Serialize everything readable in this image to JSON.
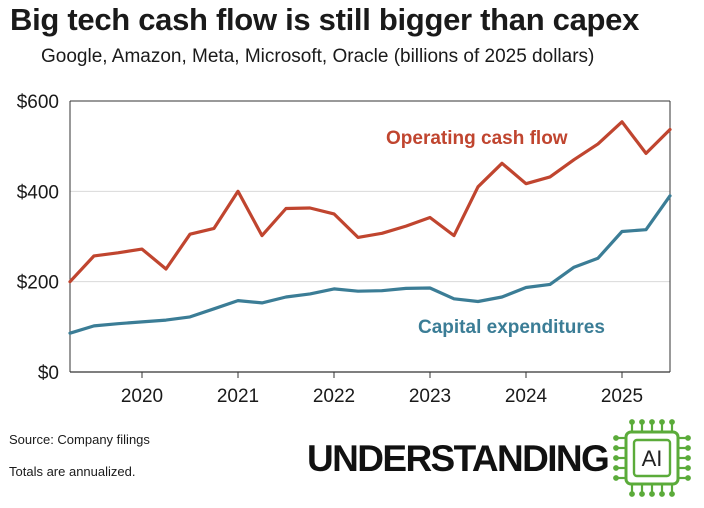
{
  "header": {
    "title": "Big tech cash flow is still bigger than capex",
    "subtitle": "Google, Amazon, Meta, Microsoft, Oracle (billions of 2025 dollars)"
  },
  "footer": {
    "source": "Source: Company filings",
    "note": "Totals are annualized.",
    "logo_text": "UNDERSTANDING",
    "logo_chip_text": "AI"
  },
  "colors": {
    "operating_cash_flow": "#c0452f",
    "capital_expenditures": "#3b7d96",
    "axis": "#333333",
    "grid": "#d9d9d9",
    "logo_green": "#5bab3a"
  },
  "chart_data": {
    "type": "line",
    "title": "Big tech cash flow is still bigger than capex",
    "subtitle": "Google, Amazon, Meta, Microsoft, Oracle (billions of 2025 dollars)",
    "x": [
      "2019 Q2",
      "2019 Q3",
      "2019 Q4",
      "2020 Q1",
      "2020 Q2",
      "2020 Q3",
      "2020 Q4",
      "2021 Q1",
      "2021 Q2",
      "2021 Q3",
      "2021 Q4",
      "2022 Q1",
      "2022 Q2",
      "2022 Q3",
      "2022 Q4",
      "2023 Q1",
      "2023 Q2",
      "2023 Q3",
      "2023 Q4",
      "2024 Q1",
      "2024 Q2",
      "2024 Q3",
      "2024 Q4",
      "2025 Q1",
      "2025 Q2",
      "2025 Q3"
    ],
    "x_tick_labels": [
      "2020",
      "2021",
      "2022",
      "2023",
      "2024",
      "2025"
    ],
    "x_tick_positions": [
      "2020 Q1",
      "2021 Q1",
      "2022 Q1",
      "2023 Q1",
      "2024 Q1",
      "2025 Q1"
    ],
    "ylim": [
      0,
      600
    ],
    "yticks": [
      0,
      200,
      400,
      600
    ],
    "ytick_labels": [
      "$0",
      "$200",
      "$400",
      "$600"
    ],
    "grid": "horizontal",
    "series": [
      {
        "name": "Operating cash flow",
        "values": [
          200,
          257,
          264,
          272,
          228,
          305,
          318,
          400,
          302,
          362,
          363,
          350,
          298,
          307,
          323,
          342,
          302,
          410,
          462,
          417,
          432,
          470,
          505,
          554,
          484,
          537
        ]
      },
      {
        "name": "Capital expenditures",
        "values": [
          86,
          102,
          107,
          111,
          115,
          122,
          140,
          158,
          153,
          166,
          173,
          184,
          179,
          180,
          185,
          186,
          162,
          156,
          166,
          187,
          194,
          232,
          252,
          311,
          315,
          390
        ]
      }
    ]
  }
}
